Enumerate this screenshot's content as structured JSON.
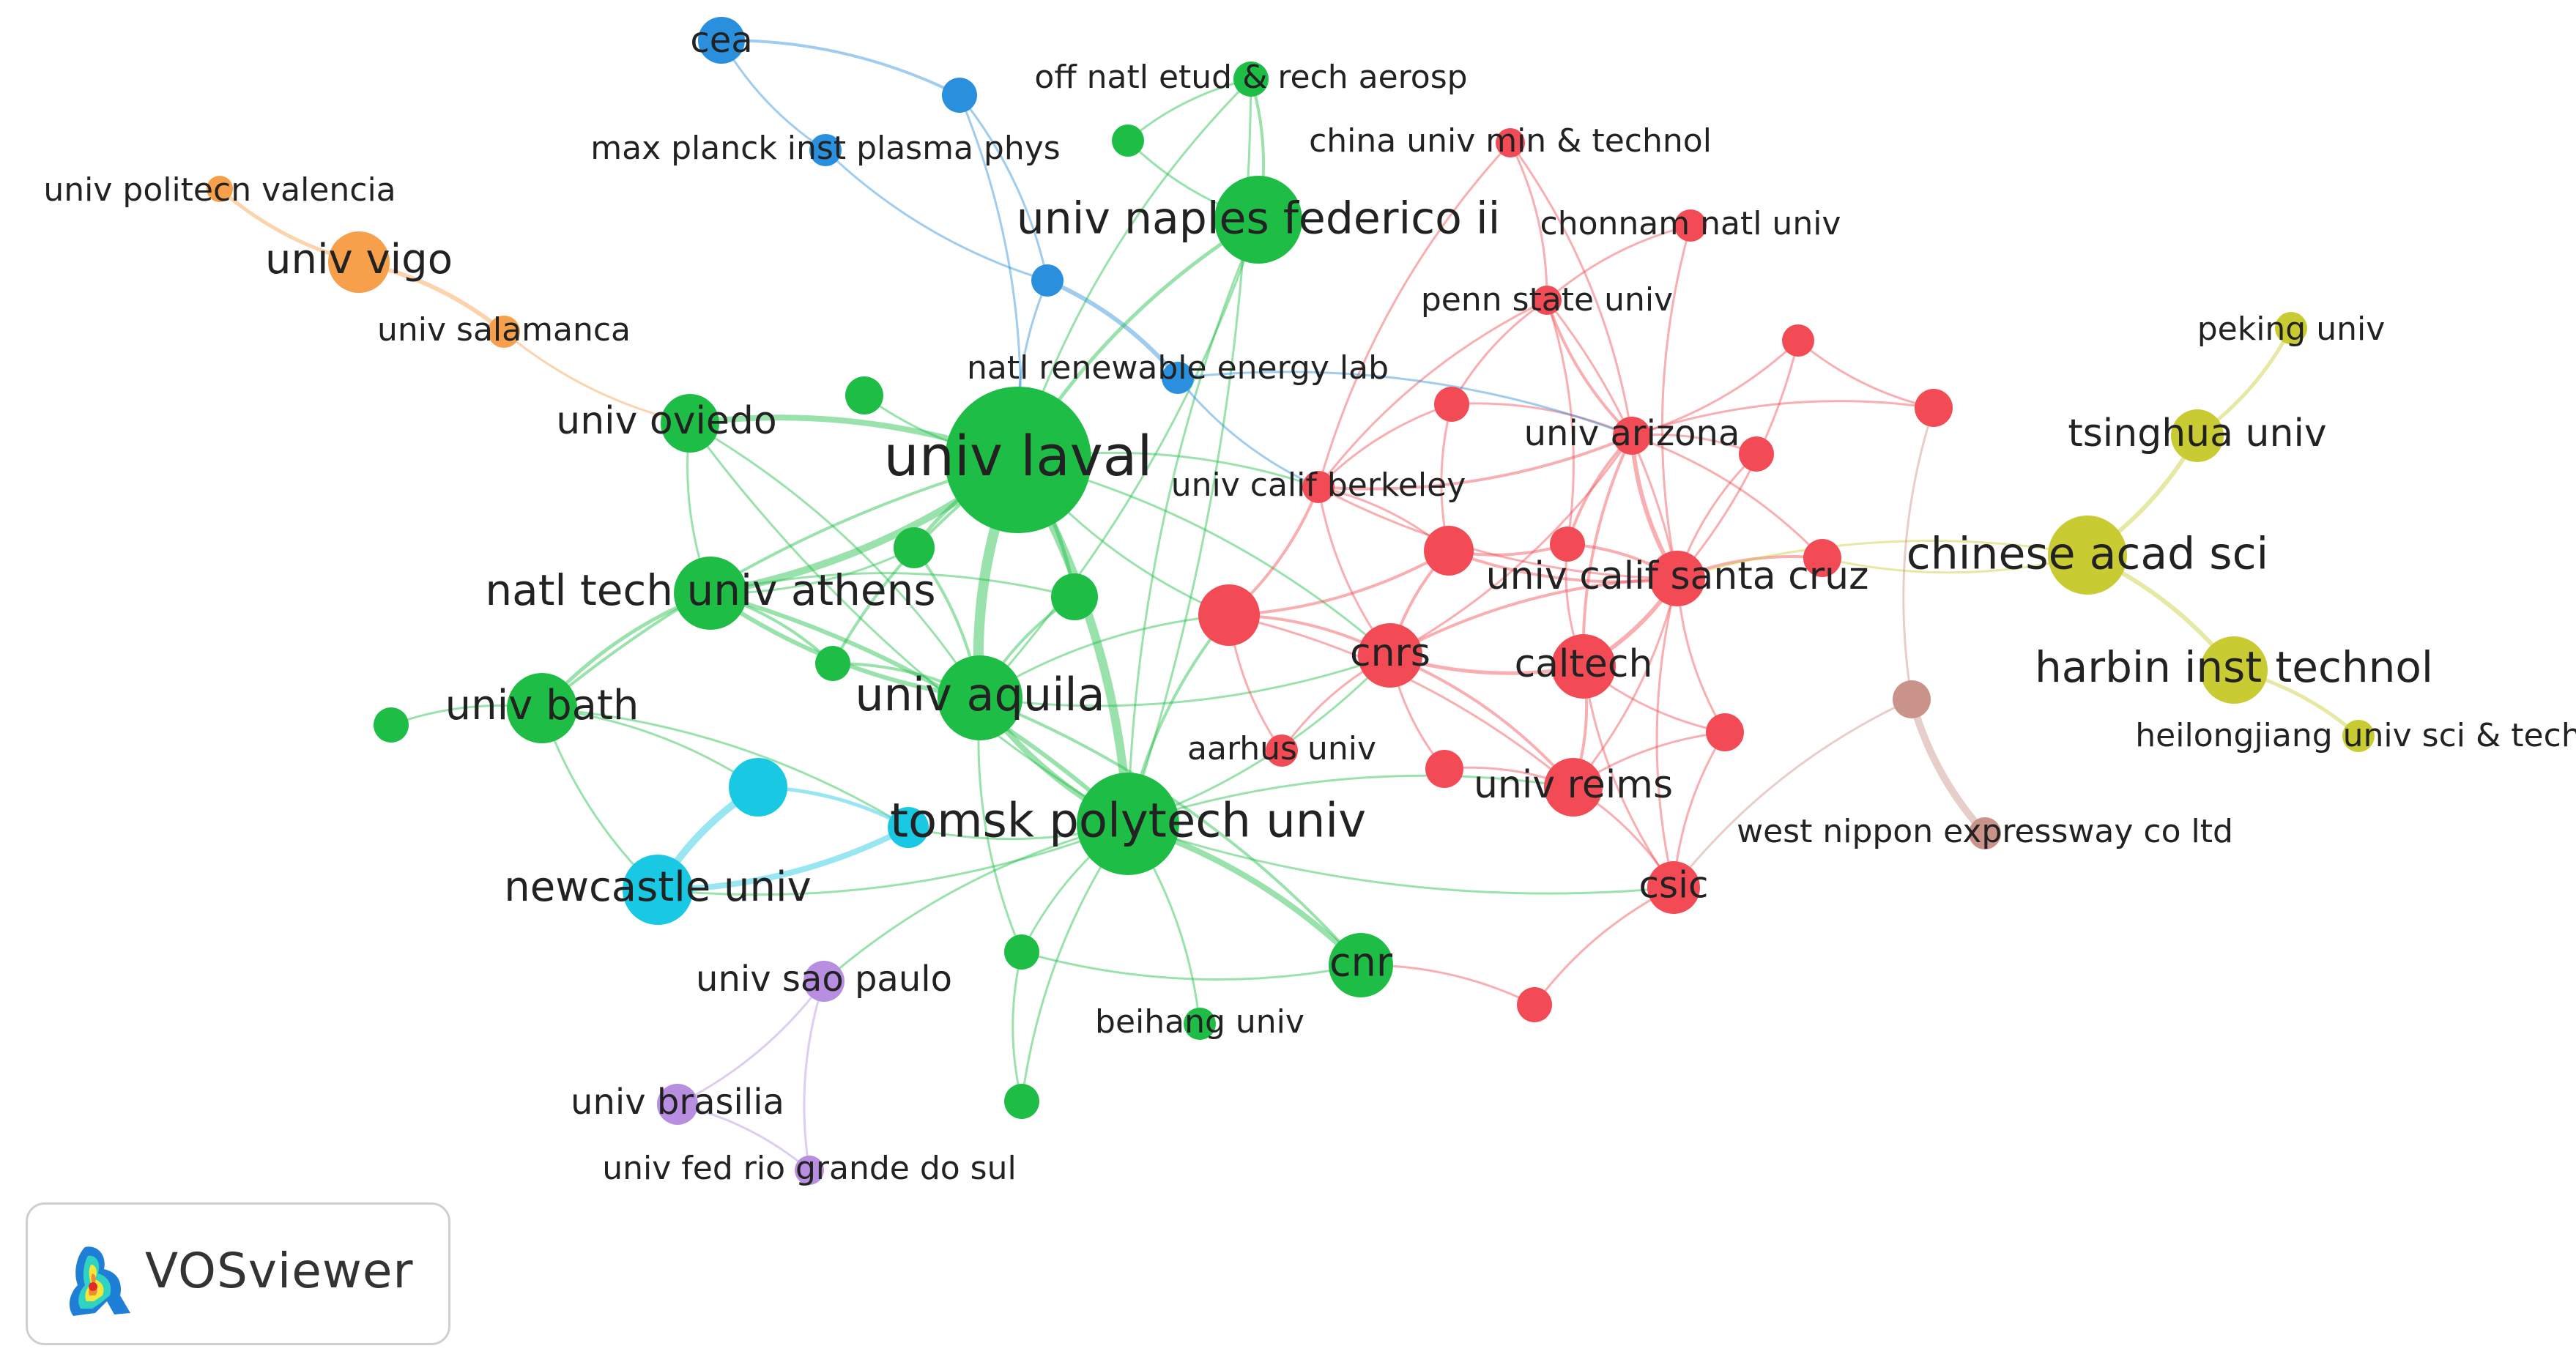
{
  "colors": {
    "green": "#1ebe46",
    "red": "#f24b55",
    "blue": "#2a8fdc",
    "cyan": "#19c8e3",
    "orange": "#f6a04c",
    "purple": "#b88ee0",
    "yellow": "#c8cc32",
    "brown": "#c9938a"
  },
  "logo": {
    "text": "VOSviewer",
    "icon": "vosviewer-logo-icon"
  },
  "nodes": [
    {
      "id": "cea",
      "label": "cea",
      "cluster": "blue"
    },
    {
      "id": "onera",
      "label": "off natl etud & rech aerosp",
      "cluster": "green"
    },
    {
      "id": "mpi",
      "label": "max planck inst plasma phys",
      "cluster": "blue"
    },
    {
      "id": "chinamin",
      "label": "china univ min & technol",
      "cluster": "red"
    },
    {
      "id": "politecvalencia",
      "label": "univ politecn valencia",
      "cluster": "orange"
    },
    {
      "id": "naples",
      "label": "univ naples federico ii",
      "cluster": "green"
    },
    {
      "id": "chonnam",
      "label": "chonnam natl univ",
      "cluster": "red"
    },
    {
      "id": "vigo",
      "label": "univ vigo",
      "cluster": "orange"
    },
    {
      "id": "pennstate",
      "label": "penn state univ",
      "cluster": "red"
    },
    {
      "id": "salamanca",
      "label": "univ salamanca",
      "cluster": "orange"
    },
    {
      "id": "peking",
      "label": "peking univ",
      "cluster": "yellow"
    },
    {
      "id": "nrel",
      "label": "natl renewable energy lab",
      "cluster": "blue"
    },
    {
      "id": "oviedo",
      "label": "univ oviedo",
      "cluster": "green"
    },
    {
      "id": "laval",
      "label": "univ laval",
      "cluster": "green"
    },
    {
      "id": "arizona",
      "label": "univ arizona",
      "cluster": "red"
    },
    {
      "id": "tsinghua",
      "label": "tsinghua univ",
      "cluster": "yellow"
    },
    {
      "id": "berkeley",
      "label": "univ calif berkeley",
      "cluster": "red"
    },
    {
      "id": "cas",
      "label": "chinese acad sci",
      "cluster": "yellow"
    },
    {
      "id": "ntua",
      "label": "natl tech univ athens",
      "cluster": "green"
    },
    {
      "id": "ucsc",
      "label": "univ calif santa cruz",
      "cluster": "red"
    },
    {
      "id": "cnrs",
      "label": "cnrs",
      "cluster": "red"
    },
    {
      "id": "caltech",
      "label": "caltech",
      "cluster": "red"
    },
    {
      "id": "harbin",
      "label": "harbin inst technol",
      "cluster": "yellow"
    },
    {
      "id": "bath",
      "label": "univ bath",
      "cluster": "green"
    },
    {
      "id": "aquila",
      "label": "univ aquila",
      "cluster": "green"
    },
    {
      "id": "heilongjiang",
      "label": "heilongjiang univ sci & tech",
      "cluster": "yellow"
    },
    {
      "id": "aarhus",
      "label": "aarhus univ",
      "cluster": "red"
    },
    {
      "id": "reims",
      "label": "univ reims",
      "cluster": "red"
    },
    {
      "id": "tomsk",
      "label": "tomsk polytech univ",
      "cluster": "green"
    },
    {
      "id": "westnippon",
      "label": "west nippon expressway co ltd",
      "cluster": "brown"
    },
    {
      "id": "newcastle",
      "label": "newcastle univ",
      "cluster": "cyan"
    },
    {
      "id": "csic",
      "label": "csic",
      "cluster": "red"
    },
    {
      "id": "cnr",
      "label": "cnr",
      "cluster": "green"
    },
    {
      "id": "saopaulo",
      "label": "univ sao paulo",
      "cluster": "purple"
    },
    {
      "id": "beihang",
      "label": "beihang univ",
      "cluster": "green"
    },
    {
      "id": "brasilia",
      "label": "univ brasilia",
      "cluster": "purple"
    },
    {
      "id": "riogrande",
      "label": "univ fed rio grande do sul",
      "cluster": "purple"
    }
  ]
}
